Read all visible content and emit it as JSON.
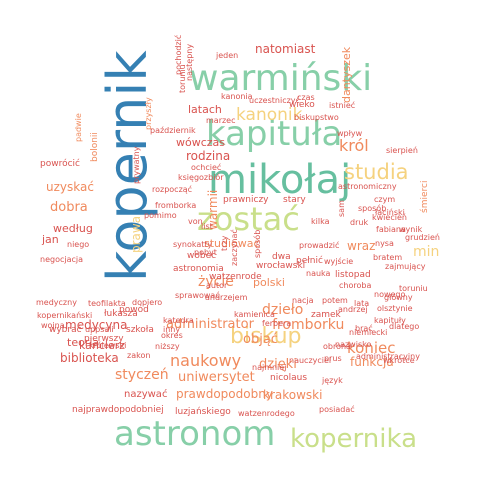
{
  "colors": {
    "green": "#87cfa8",
    "darkgreen": "#66bf9f",
    "teal": "#4fa3b3",
    "blue": "#3580b3",
    "yellowgreen": "#c9df8a",
    "yellow": "#f5d27f",
    "orange": "#f08a5d",
    "red": "#d9534f",
    "darkred": "#c9484a"
  },
  "words": [
    "kopernik",
    "astronom",
    "mikołaj",
    "kapituła",
    "warmiński",
    "kopernika",
    "zostać",
    "biskup",
    "studia",
    "kanonik",
    "naukowy",
    "styczeń",
    "uniwersytet",
    "dzieło",
    "król",
    "natomiast",
    "warmii",
    "rodzina",
    "latach",
    "wówczas",
    "dantyszek",
    "dobra",
    "uzyskać",
    "według",
    "jan",
    "min",
    "koniec",
    "fromborku",
    "objąć",
    "administrator",
    "medycyna",
    "biblioteka",
    "prawdopodobny",
    "krakowski",
    "funkcja",
    "życie",
    "dzięki",
    "polski",
    "teoria",
    "kanclerz",
    "prawa",
    "studiować",
    "wrocławski",
    "nazywać",
    "luzjańskiego",
    "najprawdopodobniej",
    "watzenrodego",
    "posiadać",
    "jeden",
    "kanonia",
    "uczestniczyć",
    "pochodzić",
    "toruniu",
    "następny",
    "czas",
    "wieko",
    "istnieć",
    "biskupstwo",
    "marzec",
    "przyszły",
    "październik",
    "wpływ",
    "padwie",
    "bolonii",
    "powrócić",
    "ochcieć",
    "księgozbiór",
    "prywatny",
    "rozpocząć",
    "fromborka",
    "pomimo",
    "von",
    "prawniczy",
    "stary",
    "astronomiczny",
    "czym",
    "śmierci",
    "sierpień",
    "grudzień",
    "wynik",
    "łaciński",
    "sposób",
    "fabiana",
    "kwiecień",
    "druk",
    "nysa",
    "bratem",
    "zajmujący",
    "toruniu",
    "nowego",
    "brać",
    "olsztynie",
    "główny",
    "kapituły",
    "niemiecki",
    "obrona",
    "nazwisko",
    "administracyjny",
    "wkrótce",
    "dlatego",
    "język",
    "prus",
    "nauczyciel",
    "najmniej",
    "nicolaus",
    "zamek",
    "ferbera",
    "andrzej",
    "kamienica",
    "nacja",
    "potem",
    "lata",
    "nauka",
    "listopad",
    "pełnić",
    "wyjście",
    "choroba",
    "prowadzić",
    "wraz",
    "dwa",
    "synokatty",
    "zaczynać",
    "trzy",
    "watzenrode",
    "wobec",
    "astronomia",
    "dopiero",
    "teofilakta",
    "medyczny",
    "kopernikański",
    "negocjacja",
    "wojna",
    "uppsali",
    "szkoła",
    "inny",
    "łukasza",
    "powód",
    "katedra",
    "pierwszy",
    "sprawować",
    "autor",
    "andrzejem",
    "wybrać",
    "królewski",
    "zakon",
    "okres",
    "niższy",
    "kilka",
    "list",
    "pobyt",
    "niego",
    "sam",
    "sposób",
    "ojciec"
  ]
}
